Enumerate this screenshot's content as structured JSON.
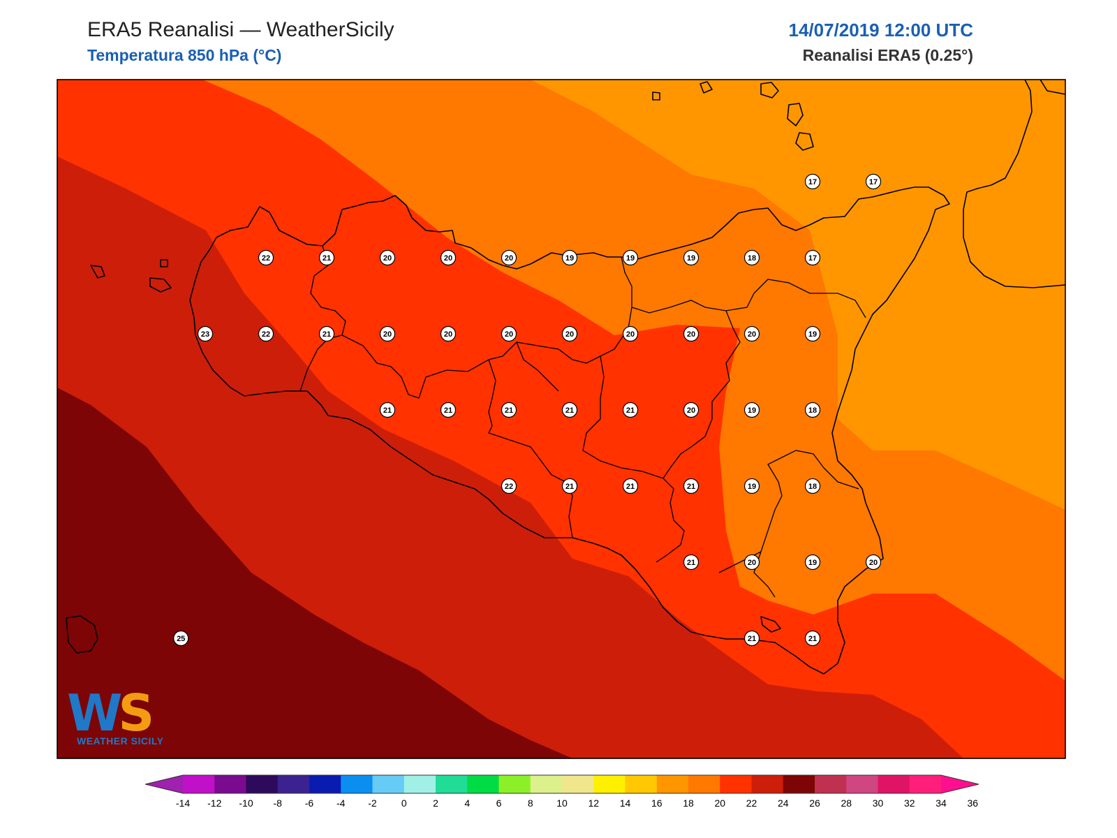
{
  "header": {
    "title_left": "ERA5 Reanalisi — WeatherSicily",
    "subtitle_left": "Temperatura 850 hPa (°C)",
    "title_right": "14/07/2019 12:00 UTC",
    "subtitle_right": "Reanalisi ERA5 (0.25°)"
  },
  "logo": {
    "letters_w": "W",
    "letters_s": "S",
    "text": "WEATHER SICILY"
  },
  "colorbar": {
    "bins": [
      {
        "lo": -16,
        "hi": -14,
        "color": "#a020b0"
      },
      {
        "lo": -14,
        "hi": -12,
        "color": "#c010c8"
      },
      {
        "lo": -12,
        "hi": -10,
        "color": "#7a0a8f"
      },
      {
        "lo": -10,
        "hi": -8,
        "color": "#2e0a5c"
      },
      {
        "lo": -8,
        "hi": -6,
        "color": "#3b2290"
      },
      {
        "lo": -6,
        "hi": -4,
        "color": "#0a1cb0"
      },
      {
        "lo": -4,
        "hi": -2,
        "color": "#0a8ff0"
      },
      {
        "lo": -2,
        "hi": 0,
        "color": "#66ccf5"
      },
      {
        "lo": 0,
        "hi": 2,
        "color": "#a0f0e6"
      },
      {
        "lo": 2,
        "hi": 4,
        "color": "#20dc96"
      },
      {
        "lo": 4,
        "hi": 6,
        "color": "#00dc46"
      },
      {
        "lo": 6,
        "hi": 8,
        "color": "#8cf028"
      },
      {
        "lo": 8,
        "hi": 10,
        "color": "#dcf08c"
      },
      {
        "lo": 10,
        "hi": 12,
        "color": "#f0e68c"
      },
      {
        "lo": 12,
        "hi": 14,
        "color": "#fff000"
      },
      {
        "lo": 14,
        "hi": 16,
        "color": "#ffc800"
      },
      {
        "lo": 16,
        "hi": 18,
        "color": "#ff9600"
      },
      {
        "lo": 18,
        "hi": 20,
        "color": "#ff7800"
      },
      {
        "lo": 20,
        "hi": 22,
        "color": "#ff3200"
      },
      {
        "lo": 22,
        "hi": 24,
        "color": "#cd1e0a"
      },
      {
        "lo": 24,
        "hi": 26,
        "color": "#7d0505"
      },
      {
        "lo": 26,
        "hi": 28,
        "color": "#c03050"
      },
      {
        "lo": 28,
        "hi": 30,
        "color": "#d04680"
      },
      {
        "lo": 30,
        "hi": 32,
        "color": "#e01464"
      },
      {
        "lo": 32,
        "hi": 34,
        "color": "#ff1e7a"
      },
      {
        "lo": 34,
        "hi": 36,
        "color": "#ff0f8f"
      }
    ],
    "tick_labels": [
      "-14",
      "-12",
      "-10",
      "-8",
      "-6",
      "-4",
      "-2",
      "0",
      "2",
      "4",
      "6",
      "8",
      "10",
      "12",
      "14",
      "16",
      "18",
      "20",
      "22",
      "24",
      "26",
      "28",
      "30",
      "32",
      "34",
      "36"
    ]
  },
  "bands": [
    {
      "level": "16-18",
      "color": "#ff9600"
    },
    {
      "level": "18-20",
      "color": "#ff7800"
    },
    {
      "level": "20-22",
      "color": "#ff3200"
    },
    {
      "level": "22-24",
      "color": "#cd1e0a"
    },
    {
      "level": "24-26",
      "color": "#7d0505"
    }
  ],
  "station_values": [
    {
      "lon": 12.5,
      "lat": 38.25,
      "value": "22"
    },
    {
      "lon": 13.0,
      "lat": 38.25,
      "value": "21"
    },
    {
      "lon": 13.5,
      "lat": 38.25,
      "value": "20"
    },
    {
      "lon": 14.0,
      "lat": 38.25,
      "value": "20"
    },
    {
      "lon": 14.5,
      "lat": 38.25,
      "value": "20"
    },
    {
      "lon": 15.0,
      "lat": 38.25,
      "value": "19"
    },
    {
      "lon": 15.5,
      "lat": 38.25,
      "value": "19"
    },
    {
      "lon": 16.0,
      "lat": 38.25,
      "value": "19"
    },
    {
      "lon": 16.5,
      "lat": 38.25,
      "value": "18"
    },
    {
      "lon": 17.0,
      "lat": 38.25,
      "value": "17"
    },
    {
      "lon": 17.0,
      "lat": 38.75,
      "value": "17"
    },
    {
      "lon": 17.5,
      "lat": 38.75,
      "value": "17"
    },
    {
      "lon": 12.0,
      "lat": 37.75,
      "value": "23"
    },
    {
      "lon": 12.5,
      "lat": 37.75,
      "value": "22"
    },
    {
      "lon": 13.0,
      "lat": 37.75,
      "value": "21"
    },
    {
      "lon": 13.5,
      "lat": 37.75,
      "value": "20"
    },
    {
      "lon": 14.0,
      "lat": 37.75,
      "value": "20"
    },
    {
      "lon": 14.5,
      "lat": 37.75,
      "value": "20"
    },
    {
      "lon": 15.0,
      "lat": 37.75,
      "value": "20"
    },
    {
      "lon": 15.5,
      "lat": 37.75,
      "value": "20"
    },
    {
      "lon": 16.0,
      "lat": 37.75,
      "value": "20"
    },
    {
      "lon": 16.5,
      "lat": 37.75,
      "value": "20"
    },
    {
      "lon": 17.0,
      "lat": 37.75,
      "value": "19"
    },
    {
      "lon": 13.5,
      "lat": 37.25,
      "value": "21"
    },
    {
      "lon": 14.0,
      "lat": 37.25,
      "value": "21"
    },
    {
      "lon": 14.5,
      "lat": 37.25,
      "value": "21"
    },
    {
      "lon": 15.0,
      "lat": 37.25,
      "value": "21"
    },
    {
      "lon": 15.5,
      "lat": 37.25,
      "value": "21"
    },
    {
      "lon": 16.0,
      "lat": 37.25,
      "value": "20"
    },
    {
      "lon": 16.5,
      "lat": 37.25,
      "value": "19"
    },
    {
      "lon": 17.0,
      "lat": 37.25,
      "value": "18"
    },
    {
      "lon": 14.5,
      "lat": 36.75,
      "value": "22"
    },
    {
      "lon": 15.0,
      "lat": 36.75,
      "value": "21"
    },
    {
      "lon": 15.5,
      "lat": 36.75,
      "value": "21"
    },
    {
      "lon": 16.0,
      "lat": 36.75,
      "value": "21"
    },
    {
      "lon": 16.5,
      "lat": 36.75,
      "value": "19"
    },
    {
      "lon": 17.0,
      "lat": 36.75,
      "value": "18"
    },
    {
      "lon": 16.0,
      "lat": 36.25,
      "value": "21"
    },
    {
      "lon": 16.5,
      "lat": 36.25,
      "value": "20"
    },
    {
      "lon": 17.0,
      "lat": 36.25,
      "value": "19"
    },
    {
      "lon": 17.5,
      "lat": 36.25,
      "value": "20"
    },
    {
      "lon": 16.5,
      "lat": 35.75,
      "value": "21"
    },
    {
      "lon": 17.0,
      "lat": 35.75,
      "value": "21"
    },
    {
      "lon": 11.8,
      "lat": 35.75,
      "value": "25"
    }
  ]
}
